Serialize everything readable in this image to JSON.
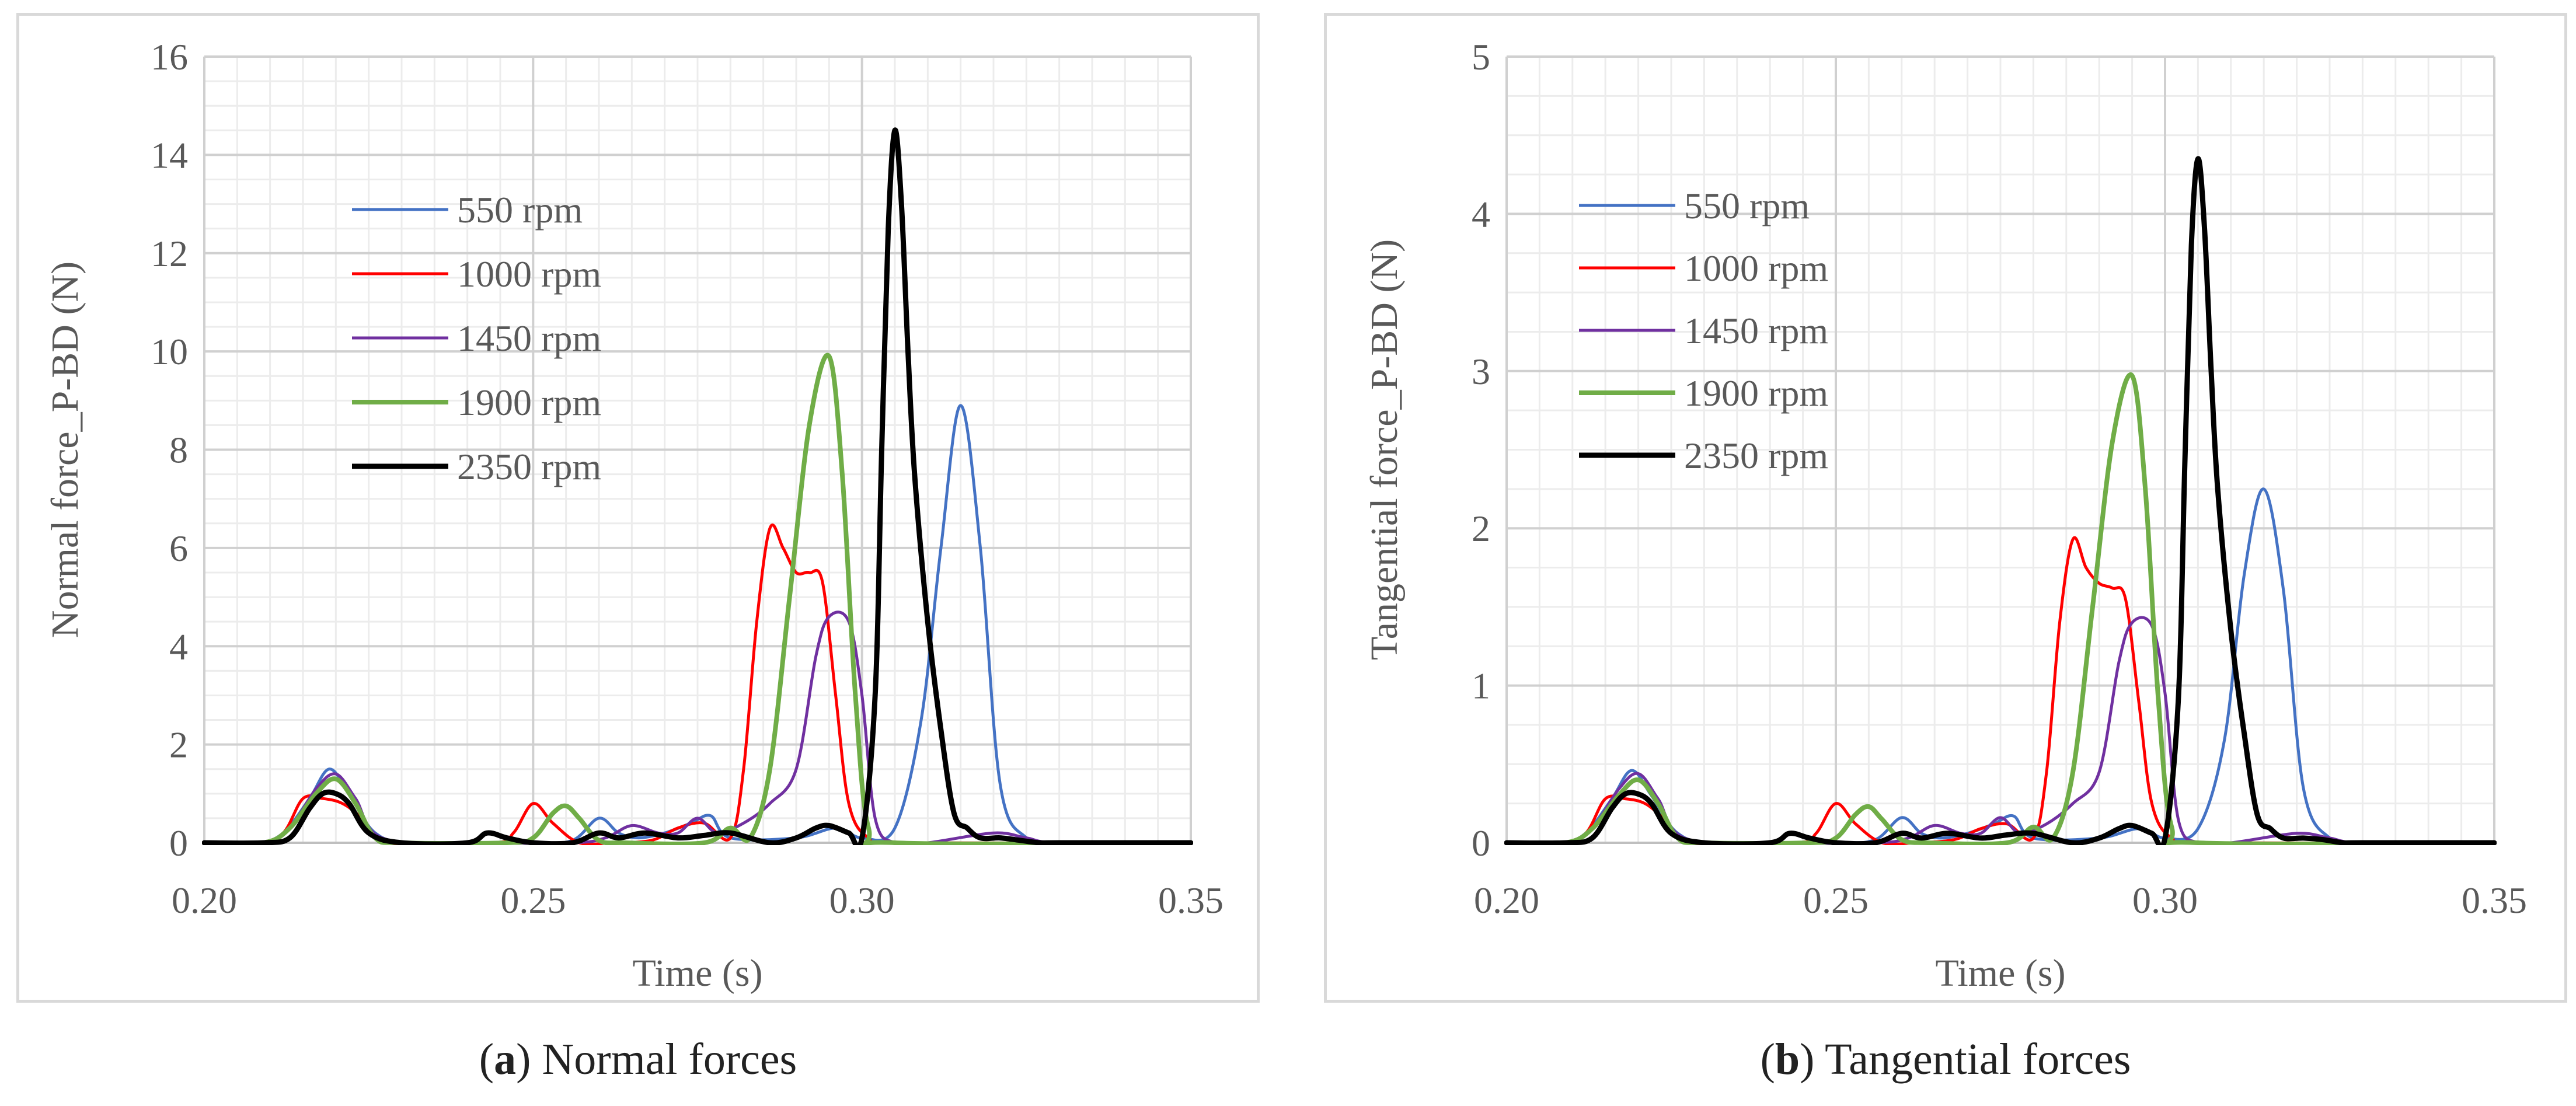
{
  "captions": [
    {
      "paren_open": "(",
      "letter": "a",
      "paren_close": ")",
      "text": " Normal forces"
    },
    {
      "paren_open": "(",
      "letter": "b",
      "paren_close": ")",
      "text": " Tangential forces"
    }
  ],
  "colors": {
    "550 rpm": "#4472c4",
    "1000 rpm": "#ff0000",
    "1450 rpm": "#7030a0",
    "1900 rpm": "#70ad47",
    "2350 rpm": "#000000"
  },
  "chart_data": [
    {
      "type": "line",
      "title": "",
      "xlabel": "Time (s)",
      "ylabel": "Normal force_P-BD (N)",
      "xlim": [
        0.2,
        0.35
      ],
      "ylim": [
        0,
        16
      ],
      "xticks": [
        "0.20",
        "0.25",
        "0.30",
        "0.35"
      ],
      "xtick_values": [
        0.2,
        0.25,
        0.3,
        0.35
      ],
      "yticks": [
        "0",
        "2",
        "4",
        "6",
        "8",
        "10",
        "12",
        "14",
        "16"
      ],
      "ytick_values": [
        0,
        2,
        4,
        6,
        8,
        10,
        12,
        14,
        16
      ],
      "legend_position": "upper-left",
      "series": [
        {
          "name": "550 rpm",
          "x": [
            0.2,
            0.208,
            0.212,
            0.216,
            0.219,
            0.222,
            0.226,
            0.232,
            0.25,
            0.256,
            0.26,
            0.263,
            0.266,
            0.27,
            0.274,
            0.277,
            0.28,
            0.29,
            0.296,
            0.3,
            0.305,
            0.309,
            0.312,
            0.315,
            0.318,
            0.321,
            0.325,
            0.33,
            0.35
          ],
          "y": [
            0,
            0,
            0.2,
            0.9,
            1.5,
            1.0,
            0.2,
            0,
            0,
            0.05,
            0.5,
            0.2,
            0.1,
            0.2,
            0.4,
            0.55,
            0.1,
            0.1,
            0.3,
            0.1,
            0.3,
            2.5,
            6.0,
            8.9,
            6.0,
            1.2,
            0.1,
            0,
            0
          ]
        },
        {
          "name": "1000 rpm",
          "x": [
            0.2,
            0.208,
            0.212,
            0.215,
            0.218,
            0.221,
            0.224,
            0.228,
            0.244,
            0.247,
            0.25,
            0.253,
            0.257,
            0.262,
            0.268,
            0.272,
            0.276,
            0.28,
            0.282,
            0.284,
            0.286,
            0.288,
            0.29,
            0.292,
            0.294,
            0.296,
            0.298,
            0.301,
            0.306,
            0.35
          ],
          "y": [
            0,
            0,
            0.2,
            0.9,
            0.9,
            0.8,
            0.5,
            0,
            0,
            0.2,
            0.8,
            0.4,
            0,
            0,
            0.05,
            0.3,
            0.4,
            0.1,
            1.5,
            4.5,
            6.4,
            6.0,
            5.5,
            5.5,
            5.3,
            3.0,
            0.8,
            0.1,
            0,
            0
          ]
        },
        {
          "name": "1450 rpm",
          "x": [
            0.2,
            0.209,
            0.213,
            0.217,
            0.22,
            0.223,
            0.227,
            0.24,
            0.256,
            0.261,
            0.265,
            0.269,
            0.272,
            0.275,
            0.278,
            0.282,
            0.286,
            0.29,
            0.293,
            0.295,
            0.298,
            0.3,
            0.302,
            0.305,
            0.31,
            0.32,
            0.325,
            0.33,
            0.35
          ],
          "y": [
            0,
            0,
            0.3,
            1.1,
            1.4,
            0.9,
            0.1,
            0,
            0,
            0.1,
            0.35,
            0.2,
            0.2,
            0.5,
            0.2,
            0.4,
            0.8,
            1.5,
            3.8,
            4.6,
            4.5,
            3.0,
            0.5,
            0,
            0,
            0.2,
            0.1,
            0,
            0
          ]
        },
        {
          "name": "1900 rpm",
          "x": [
            0.2,
            0.209,
            0.213,
            0.217,
            0.22,
            0.223,
            0.226,
            0.23,
            0.246,
            0.25,
            0.253,
            0.255,
            0.257,
            0.26,
            0.264,
            0.276,
            0.28,
            0.283,
            0.286,
            0.289,
            0.292,
            0.295,
            0.297,
            0.299,
            0.301,
            0.305,
            0.35
          ],
          "y": [
            0,
            0,
            0.3,
            1.0,
            1.3,
            0.8,
            0.1,
            0,
            0,
            0.1,
            0.6,
            0.75,
            0.5,
            0.05,
            0,
            0,
            0.3,
            0.1,
            1.5,
            5.0,
            8.5,
            9.9,
            7.5,
            3.0,
            0.3,
            0,
            0
          ]
        },
        {
          "name": "2350 rpm",
          "x": [
            0.2,
            0.209,
            0.213,
            0.216,
            0.218,
            0.22,
            0.222,
            0.225,
            0.23,
            0.24,
            0.243,
            0.246,
            0.25,
            0.256,
            0.26,
            0.263,
            0.267,
            0.272,
            0.276,
            0.28,
            0.286,
            0.29,
            0.293,
            0.295,
            0.298,
            0.3,
            0.302,
            0.303,
            0.304,
            0.305,
            0.306,
            0.307,
            0.308,
            0.31,
            0.312,
            0.314,
            0.316,
            0.318,
            0.321,
            0.324,
            0.327,
            0.33,
            0.35
          ],
          "y": [
            0,
            0,
            0.1,
            0.7,
            1.0,
            1.0,
            0.8,
            0.2,
            0,
            0,
            0.2,
            0.1,
            0,
            0,
            0.2,
            0.1,
            0.2,
            0.1,
            0.15,
            0.2,
            0,
            0.1,
            0.3,
            0.35,
            0.2,
            0.1,
            3.0,
            8.0,
            12.5,
            14.5,
            13.0,
            10.0,
            7.5,
            4.5,
            2.3,
            0.6,
            0.3,
            0.1,
            0.1,
            0.05,
            0,
            0,
            0
          ]
        }
      ]
    },
    {
      "type": "line",
      "title": "",
      "xlabel": "Time (s)",
      "ylabel": "Tangential force_P-BD (N)",
      "xlim": [
        0.2,
        0.35
      ],
      "ylim": [
        0,
        5
      ],
      "xticks": [
        "0.20",
        "0.25",
        "0.30",
        "0.35"
      ],
      "xtick_values": [
        0.2,
        0.25,
        0.3,
        0.35
      ],
      "yticks": [
        "0",
        "1",
        "2",
        "3",
        "4",
        "5"
      ],
      "ytick_values": [
        0,
        1,
        2,
        3,
        4,
        5
      ],
      "legend_position": "upper-left",
      "series": [
        {
          "name": "550 rpm",
          "x": [
            0.2,
            0.208,
            0.212,
            0.216,
            0.219,
            0.222,
            0.226,
            0.232,
            0.25,
            0.256,
            0.26,
            0.263,
            0.266,
            0.27,
            0.274,
            0.277,
            0.28,
            0.29,
            0.296,
            0.3,
            0.305,
            0.309,
            0.312,
            0.315,
            0.318,
            0.321,
            0.325,
            0.33,
            0.35
          ],
          "y": [
            0,
            0,
            0.06,
            0.28,
            0.46,
            0.3,
            0.06,
            0,
            0,
            0.02,
            0.16,
            0.06,
            0.03,
            0.06,
            0.12,
            0.17,
            0.03,
            0.03,
            0.09,
            0.03,
            0.09,
            0.65,
            1.7,
            2.25,
            1.6,
            0.35,
            0.03,
            0,
            0
          ]
        },
        {
          "name": "1000 rpm",
          "x": [
            0.2,
            0.208,
            0.212,
            0.215,
            0.218,
            0.221,
            0.224,
            0.228,
            0.244,
            0.247,
            0.25,
            0.253,
            0.257,
            0.262,
            0.268,
            0.272,
            0.276,
            0.28,
            0.282,
            0.284,
            0.286,
            0.288,
            0.29,
            0.292,
            0.294,
            0.296,
            0.298,
            0.301,
            0.306,
            0.35
          ],
          "y": [
            0,
            0,
            0.06,
            0.28,
            0.28,
            0.25,
            0.15,
            0,
            0,
            0.06,
            0.25,
            0.12,
            0,
            0,
            0.02,
            0.09,
            0.12,
            0.03,
            0.45,
            1.4,
            1.93,
            1.75,
            1.65,
            1.62,
            1.55,
            0.9,
            0.25,
            0.03,
            0,
            0
          ]
        },
        {
          "name": "1450 rpm",
          "x": [
            0.2,
            0.209,
            0.213,
            0.217,
            0.22,
            0.223,
            0.227,
            0.24,
            0.256,
            0.261,
            0.265,
            0.269,
            0.272,
            0.275,
            0.278,
            0.282,
            0.286,
            0.29,
            0.293,
            0.295,
            0.298,
            0.3,
            0.302,
            0.305,
            0.31,
            0.32,
            0.325,
            0.33,
            0.35
          ],
          "y": [
            0,
            0,
            0.09,
            0.34,
            0.44,
            0.28,
            0.03,
            0,
            0,
            0.03,
            0.11,
            0.06,
            0.06,
            0.16,
            0.06,
            0.12,
            0.25,
            0.45,
            1.15,
            1.4,
            1.38,
            0.95,
            0.15,
            0,
            0,
            0.06,
            0.03,
            0,
            0
          ]
        },
        {
          "name": "1900 rpm",
          "x": [
            0.2,
            0.209,
            0.213,
            0.217,
            0.22,
            0.223,
            0.226,
            0.23,
            0.246,
            0.25,
            0.253,
            0.255,
            0.257,
            0.26,
            0.264,
            0.276,
            0.28,
            0.283,
            0.286,
            0.289,
            0.292,
            0.295,
            0.297,
            0.299,
            0.301,
            0.305,
            0.35
          ],
          "y": [
            0,
            0,
            0.09,
            0.3,
            0.4,
            0.25,
            0.03,
            0,
            0,
            0.03,
            0.18,
            0.23,
            0.15,
            0.02,
            0,
            0,
            0.1,
            0.03,
            0.45,
            1.5,
            2.55,
            2.97,
            2.25,
            0.9,
            0.1,
            0,
            0
          ]
        },
        {
          "name": "2350 rpm",
          "x": [
            0.2,
            0.209,
            0.213,
            0.216,
            0.218,
            0.22,
            0.222,
            0.225,
            0.23,
            0.24,
            0.243,
            0.246,
            0.25,
            0.256,
            0.26,
            0.263,
            0.267,
            0.272,
            0.276,
            0.28,
            0.286,
            0.29,
            0.293,
            0.295,
            0.298,
            0.3,
            0.302,
            0.303,
            0.304,
            0.305,
            0.306,
            0.307,
            0.308,
            0.31,
            0.312,
            0.314,
            0.316,
            0.318,
            0.321,
            0.324,
            0.327,
            0.33,
            0.35
          ],
          "y": [
            0,
            0,
            0.03,
            0.22,
            0.31,
            0.31,
            0.25,
            0.06,
            0,
            0,
            0.06,
            0.03,
            0,
            0,
            0.06,
            0.03,
            0.06,
            0.03,
            0.05,
            0.06,
            0,
            0.03,
            0.09,
            0.11,
            0.06,
            0.03,
            0.9,
            2.4,
            3.8,
            4.35,
            3.9,
            3.0,
            2.25,
            1.35,
            0.7,
            0.18,
            0.09,
            0.03,
            0.03,
            0.02,
            0,
            0,
            0
          ]
        }
      ]
    }
  ]
}
